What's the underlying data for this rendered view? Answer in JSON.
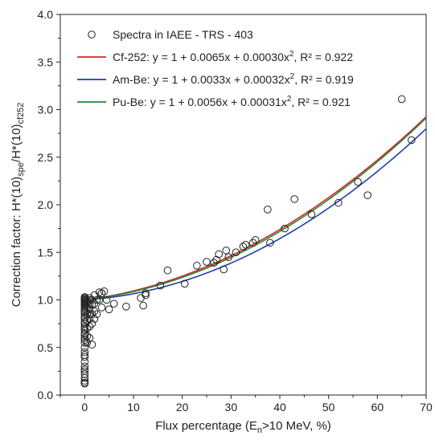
{
  "chart_data": {
    "type": "scatter",
    "xlabel_parts": [
      "Flux percentage (E",
      "n",
      ">10 MeV, %)"
    ],
    "ylabel_parts": [
      "Correction factor: H*(10)",
      "spe",
      "/H*(10)",
      "cf252"
    ],
    "xlim": [
      -5,
      70
    ],
    "ylim": [
      0.0,
      4.0
    ],
    "xticks": [
      0,
      10,
      20,
      30,
      40,
      50,
      60,
      70
    ],
    "yticks": [
      0.0,
      0.5,
      1.0,
      1.5,
      2.0,
      2.5,
      3.0,
      3.5,
      4.0
    ],
    "xtick_labels": [
      "0",
      "10",
      "20",
      "30",
      "40",
      "50",
      "60",
      "70"
    ],
    "ytick_labels": [
      "0.0",
      "0.5",
      "1.0",
      "1.5",
      "2.0",
      "2.5",
      "3.0",
      "3.5",
      "4.0"
    ],
    "legend_position": "top-left",
    "scatter": {
      "name": "Spectra in IAEE - TRS - 403",
      "x": [
        0,
        0,
        0,
        0,
        0,
        0,
        0,
        0,
        0,
        0,
        0,
        0,
        0,
        0,
        0,
        0,
        0,
        0,
        0,
        0,
        0,
        0,
        0,
        0,
        0,
        0,
        0,
        0,
        0,
        0,
        0,
        0,
        0,
        0,
        0,
        0,
        0,
        0,
        0,
        0,
        0.5,
        0.5,
        0.5,
        0.5,
        0.5,
        0.5,
        0.5,
        0.5,
        1,
        1,
        1,
        1,
        1,
        1,
        1,
        1,
        1.5,
        1.5,
        1.5,
        1.5,
        1.5,
        2,
        2,
        2,
        2,
        2.5,
        2.5,
        3,
        3,
        3.5,
        3.5,
        4,
        4.5,
        5,
        6,
        8.5,
        11.5,
        12,
        12.5,
        12.5,
        15.5,
        17,
        20.5,
        23,
        25,
        26.5,
        27,
        27.5,
        28.5,
        29,
        29.5,
        31,
        32.5,
        33,
        34.5,
        35,
        37.5,
        38,
        41,
        43,
        46.5,
        52,
        56,
        58,
        65,
        67
      ],
      "y": [
        0.13,
        0.15,
        0.18,
        0.22,
        0.27,
        0.3,
        0.35,
        0.4,
        0.45,
        0.5,
        0.55,
        0.58,
        0.6,
        0.63,
        0.65,
        0.68,
        0.7,
        0.72,
        0.75,
        0.77,
        0.8,
        0.82,
        0.85,
        0.87,
        0.88,
        0.9,
        0.92,
        0.94,
        0.95,
        0.96,
        0.97,
        0.98,
        0.99,
        1.0,
        1.01,
        1.02,
        1.03,
        0.12,
        0.25,
        0.42,
        0.55,
        0.62,
        0.7,
        0.78,
        0.85,
        0.92,
        0.97,
        1.0,
        0.6,
        0.72,
        0.8,
        0.85,
        0.9,
        0.95,
        1.0,
        1.02,
        0.53,
        0.75,
        0.85,
        0.95,
        1.0,
        0.8,
        0.88,
        0.96,
        1.05,
        0.85,
        1.0,
        1.0,
        1.08,
        0.92,
        1.07,
        1.09,
        1.0,
        0.9,
        0.96,
        0.93,
        1.02,
        0.94,
        1.05,
        1.07,
        1.15,
        1.31,
        1.17,
        1.36,
        1.4,
        1.39,
        1.42,
        1.48,
        1.32,
        1.52,
        1.45,
        1.5,
        1.56,
        1.58,
        1.6,
        1.63,
        1.95,
        1.6,
        1.75,
        2.06,
        1.9,
        2.02,
        2.24,
        2.1,
        3.11,
        2.68
      ]
    },
    "series": [
      {
        "name": "Cf-252",
        "equation": "y = 1 + 0.0065x + 0.00030x",
        "r2_text": "R² = 0.922",
        "a": 0.0065,
        "b": 0.0003,
        "color": "#d62728"
      },
      {
        "name": "Am-Be",
        "equation": "y = 1 + 0.0033x + 0.00032x",
        "r2_text": "R² = 0.919",
        "a": 0.0033,
        "b": 0.00032,
        "color": "#1f3fa8"
      },
      {
        "name": "Pu-Be",
        "equation": "y = 1 + 0.0056x + 0.00031x",
        "r2_text": "R² = 0.921",
        "a": 0.0056,
        "b": 0.00031,
        "color": "#1e8a3a"
      }
    ]
  }
}
